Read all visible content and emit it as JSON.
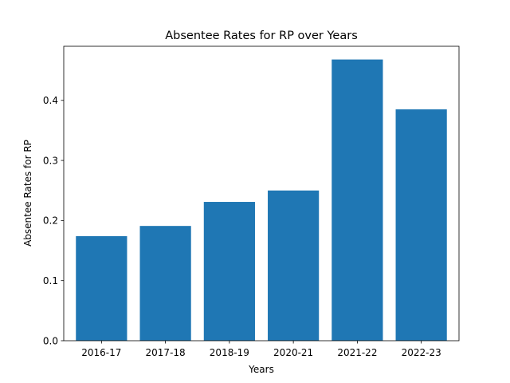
{
  "chart_data": {
    "type": "bar",
    "title": "Absentee Rates for RP over Years",
    "xlabel": "Years",
    "ylabel": "Absentee Rates for RP",
    "categories": [
      "2016-17",
      "2017-18",
      "2018-19",
      "2020-21",
      "2021-22",
      "2022-23"
    ],
    "values": [
      0.174,
      0.191,
      0.231,
      0.25,
      0.468,
      0.385
    ],
    "ylim": [
      0,
      0.49
    ],
    "yticks": [
      0.0,
      0.1,
      0.2,
      0.3,
      0.4
    ],
    "ytick_labels": [
      "0.0",
      "0.1",
      "0.2",
      "0.3",
      "0.4"
    ],
    "bar_color": "#1f77b4",
    "grid": false,
    "legend": "none"
  }
}
